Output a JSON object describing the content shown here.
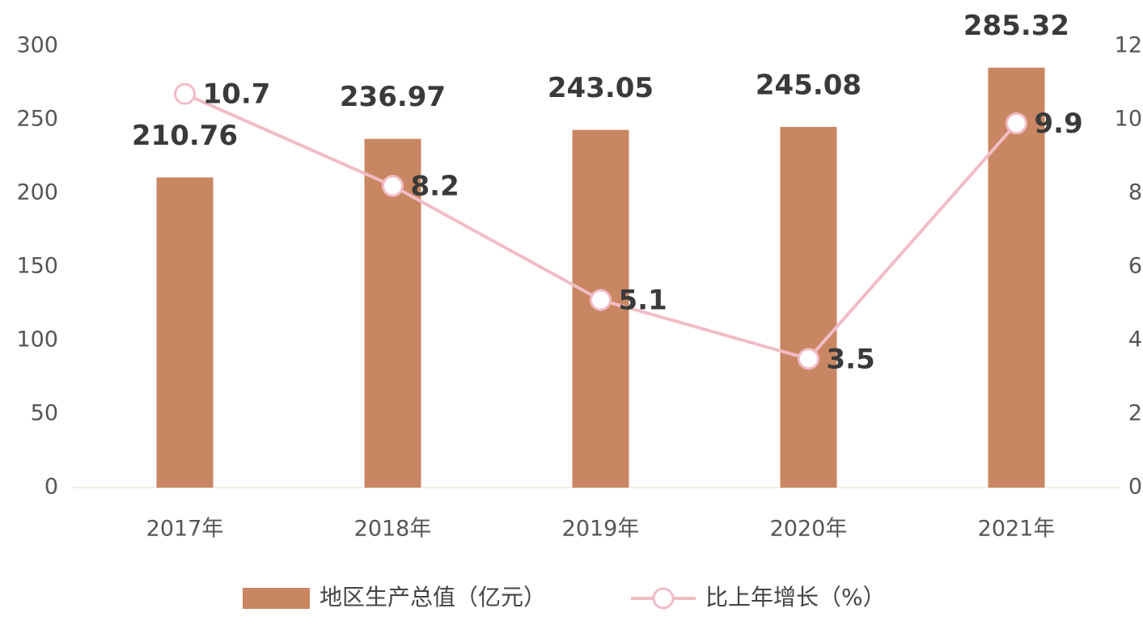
{
  "chart_data": {
    "type": "bar-line",
    "categories": [
      "2017年",
      "2018年",
      "2019年",
      "2020年",
      "2021年"
    ],
    "series": [
      {
        "name": "地区生产总值（亿元）",
        "type": "bar",
        "color": "#c98662",
        "values": [
          210.76,
          236.97,
          243.05,
          245.08,
          285.32
        ]
      },
      {
        "name": "比上年增长（%）",
        "type": "line",
        "axis": "y2",
        "color": "#f2bcc6",
        "values": [
          10.7,
          8.2,
          5.1,
          3.5,
          9.9
        ]
      }
    ],
    "ylim": [
      0,
      300
    ],
    "yticks": [
      0,
      50,
      100,
      150,
      200,
      250,
      300
    ],
    "y2lim": [
      0,
      12
    ],
    "y2ticks": [
      0,
      2,
      4,
      6,
      8,
      10,
      12
    ],
    "legend": "bottom"
  }
}
